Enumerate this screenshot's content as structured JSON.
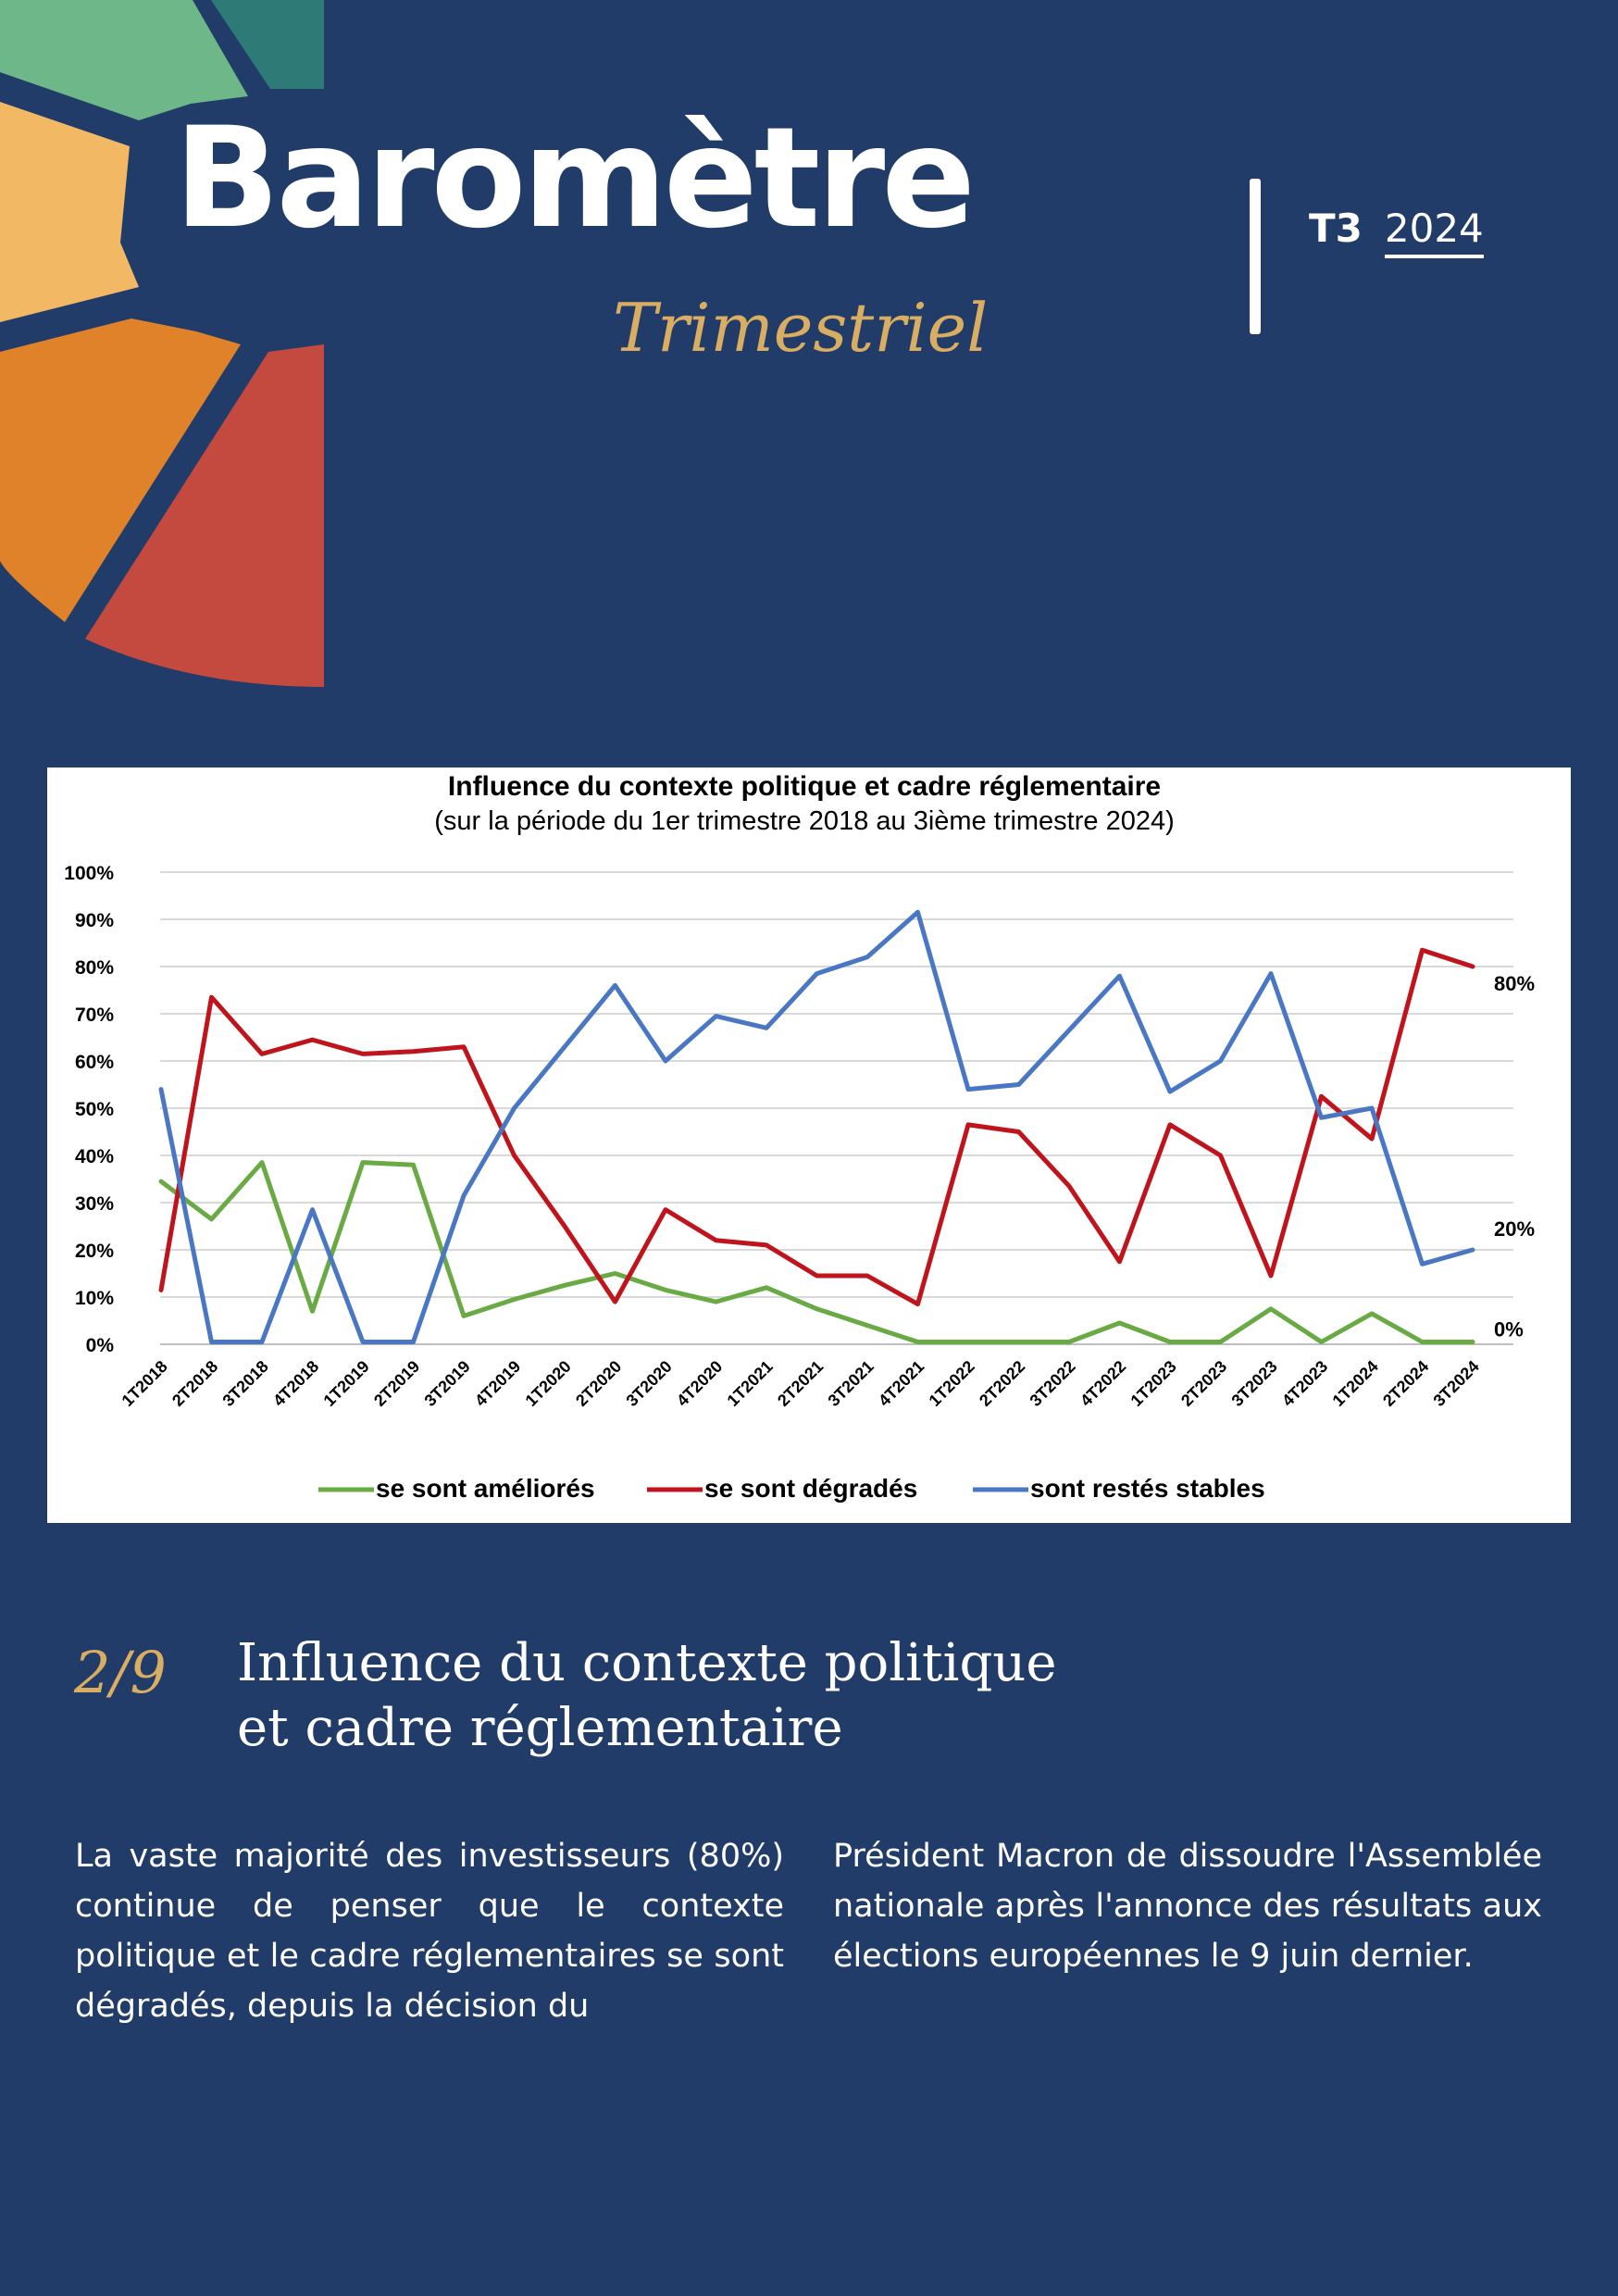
{
  "header": {
    "brand_title": "Baromètre",
    "brand_subtitle": "Trimestriel",
    "quarter": "T3",
    "year": "2024"
  },
  "colors": {
    "background": "#213c68",
    "accent_gold": "#d9ad62",
    "series_ameliores": "#6aaa45",
    "series_degrades": "#c0141d",
    "series_stables": "#4a77c3",
    "deco_petals": [
      "#2e7a76",
      "#6db788",
      "#f2b864",
      "#e0822a",
      "#c44a3f"
    ]
  },
  "chart_data": {
    "type": "line",
    "title": "Influence du contexte politique et cadre réglementaire",
    "subtitle": "(sur la période du 1er trimestre 2018 au 3ième trimestre 2024)",
    "categories": [
      "1T2018",
      "2T2018",
      "3T2018",
      "4T2018",
      "1T2019",
      "2T2019",
      "3T2019",
      "4T2019",
      "1T2020",
      "2T2020",
      "3T2020",
      "4T2020",
      "1T2021",
      "2T2021",
      "3T2021",
      "4T2021",
      "1T2022",
      "2T2022",
      "3T2022",
      "4T2022",
      "1T2023",
      "2T2023",
      "3T2023",
      "4T2023",
      "1T2024",
      "2T2024",
      "3T2024"
    ],
    "y_ticks": [
      "0%",
      "10%",
      "20%",
      "30%",
      "40%",
      "50%",
      "60%",
      "70%",
      "80%",
      "90%",
      "100%"
    ],
    "ylim": [
      0,
      100
    ],
    "grid": true,
    "legend_position": "bottom",
    "series": [
      {
        "name": "se sont améliorés",
        "color": "#6aaa45",
        "end_label": "0%",
        "values": [
          34.5,
          26.5,
          38.5,
          7,
          38.5,
          38,
          6,
          9.5,
          12.5,
          15,
          11.5,
          9,
          12,
          7.5,
          4,
          0.5,
          0.5,
          0.5,
          0.5,
          4.5,
          0.5,
          0.5,
          7.5,
          0.5,
          6.5,
          0.5,
          0.5
        ]
      },
      {
        "name": "se sont dégradés",
        "color": "#c0141d",
        "end_label": "80%",
        "values": [
          11.5,
          73.5,
          61.5,
          64.5,
          61.5,
          62,
          63,
          40,
          25,
          9,
          28.5,
          22,
          21,
          14.5,
          14.5,
          8.5,
          46.5,
          45,
          33.5,
          17.5,
          46.5,
          40,
          14.5,
          52.5,
          43.5,
          83.5,
          80
        ]
      },
      {
        "name": "sont restés stables",
        "color": "#4a77c3",
        "end_label": "20%",
        "values": [
          54,
          0.5,
          0.5,
          28.5,
          0.5,
          0.5,
          31.5,
          50,
          63,
          76,
          60,
          69.5,
          67,
          78.5,
          82,
          91.5,
          54,
          55,
          66.5,
          78,
          53.5,
          60,
          78.5,
          48,
          50,
          17,
          20
        ]
      }
    ]
  },
  "section": {
    "number": "2/9",
    "title_line1": "Influence du contexte politique",
    "title_line2": "et cadre réglementaire"
  },
  "body": {
    "col_left": "La vaste majorité des investisseurs (80%) continue de penser que le contexte politique et le cadre réglementaires se sont dégradés, depuis la décision du",
    "col_right": "Président Macron de dissoudre l'Assemblée nationale après l'annonce des résultats aux élections européennes le 9 juin dernier."
  }
}
